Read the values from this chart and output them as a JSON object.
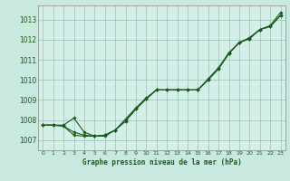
{
  "title": "Graphe pression niveau de la mer (hPa)",
  "bg_color": "#c8e8e0",
  "plot_bg_color": "#d4eee8",
  "grid_color": "#a0c8c0",
  "line_color": "#1a5c1a",
  "spine_color": "#888888",
  "xlim": [
    -0.5,
    23.5
  ],
  "ylim": [
    1006.5,
    1013.7
  ],
  "yticks": [
    1007,
    1008,
    1009,
    1010,
    1011,
    1012,
    1013
  ],
  "xticks": [
    0,
    1,
    2,
    3,
    4,
    5,
    6,
    7,
    8,
    9,
    10,
    11,
    12,
    13,
    14,
    15,
    16,
    17,
    18,
    19,
    20,
    21,
    22,
    23
  ],
  "series": [
    [
      1007.75,
      1007.75,
      1007.75,
      1008.1,
      1007.35,
      1007.2,
      1007.25,
      1007.35,
      1007.85,
      1008.6,
      1009.1,
      1009.5,
      1009.5,
      1009.5,
      1009.5,
      1009.5,
      1010.0,
      1010.55,
      1011.3,
      1011.85,
      1012.05,
      1012.5,
      1012.7,
      1013.35
    ],
    [
      1007.75,
      1007.75,
      1007.7,
      1007.5,
      1007.2,
      1007.2,
      1007.25,
      1007.7,
      1008.3,
      1008.6,
      1009.0,
      1009.5,
      1009.5,
      1009.5,
      1009.5,
      1009.5,
      1009.95,
      1010.5,
      1011.35,
      1011.9,
      1012.05,
      1012.5,
      1012.65,
      1013.2
    ],
    [
      1007.75,
      1007.75,
      1007.7,
      1007.3,
      1007.25,
      1007.2,
      1007.25,
      1007.6,
      1008.0,
      1008.55,
      1008.95,
      1009.45,
      1009.5,
      1009.5,
      1009.5,
      1009.5,
      1009.95,
      1010.5,
      1011.3,
      1011.9,
      1012.05,
      1012.5,
      1012.65,
      1013.2
    ]
  ],
  "series2": [
    [
      1007.75,
      1007.75,
      1007.75,
      1008.1,
      1007.35,
      1007.2,
      1007.25,
      1007.35,
      1007.85,
      1008.6,
      1009.1,
      1009.5,
      1009.5,
      1009.5,
      1009.5,
      1009.5,
      1010.0,
      1010.55,
      1011.3,
      1011.85,
      1012.05,
      1012.5,
      1012.7,
      1013.35
    ]
  ]
}
